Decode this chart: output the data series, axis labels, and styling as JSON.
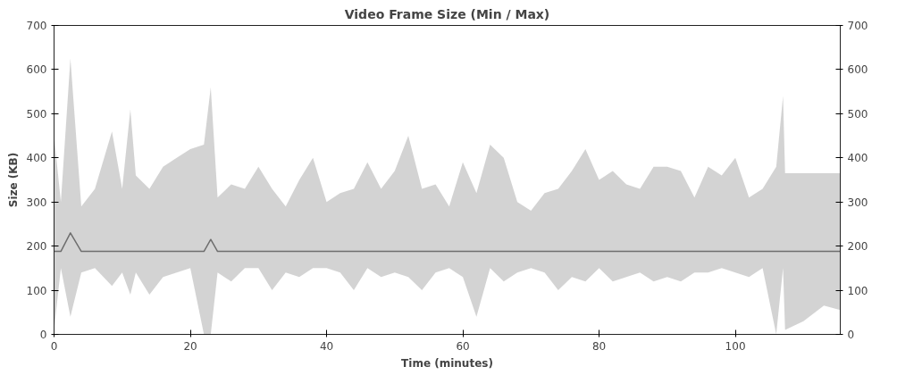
{
  "chart_data": {
    "type": "line",
    "title": "Video Frame Size (Min / Max)",
    "xlabel": "Time (minutes)",
    "ylabel": "Size (KB)",
    "xlim": [
      0,
      115.4
    ],
    "xticks": [
      0,
      20,
      40,
      60,
      80,
      100
    ],
    "ylim": [
      0,
      700
    ],
    "yticks": [
      0,
      100,
      200,
      300,
      400,
      500,
      600,
      700
    ],
    "y2lim": [
      0,
      700
    ],
    "y2ticks": [
      0,
      100,
      200,
      300,
      400,
      500,
      600,
      700
    ],
    "grid": false,
    "marker": "none",
    "line_style": "solid",
    "series": [
      {
        "color": "#6e6e6e",
        "x": [
          0,
          1,
          2.4,
          4,
          6,
          8.5,
          10,
          11.2,
          12,
          14,
          16,
          18,
          20,
          22,
          23,
          24,
          26,
          28,
          30,
          32,
          34,
          36,
          38,
          40,
          42,
          44,
          46,
          48,
          50,
          52,
          54,
          56,
          58,
          60,
          62,
          64,
          66,
          68,
          70,
          72,
          74,
          76,
          78,
          80,
          82,
          84,
          86,
          88,
          90,
          92,
          94,
          96,
          98,
          100,
          102,
          104,
          106,
          107,
          107.3,
          110,
          113,
          115.4
        ],
        "values": [
          188,
          188,
          230,
          188,
          188,
          188,
          188,
          188,
          188,
          188,
          188,
          188,
          188,
          188,
          215,
          188,
          188,
          188,
          188,
          188,
          188,
          188,
          188,
          188,
          188,
          188,
          188,
          188,
          188,
          188,
          188,
          188,
          188,
          188,
          188,
          188,
          188,
          188,
          188,
          188,
          188,
          188,
          188,
          188,
          188,
          188,
          188,
          188,
          188,
          188,
          188,
          188,
          188,
          188,
          188,
          188,
          188,
          188,
          188,
          188,
          188,
          188
        ],
        "upper": [
          450,
          300,
          625,
          290,
          330,
          460,
          330,
          510,
          360,
          330,
          380,
          400,
          420,
          430,
          560,
          310,
          340,
          330,
          380,
          330,
          290,
          350,
          400,
          300,
          320,
          330,
          390,
          330,
          370,
          450,
          330,
          340,
          290,
          390,
          320,
          430,
          400,
          300,
          280,
          320,
          330,
          370,
          420,
          350,
          370,
          340,
          330,
          380,
          380,
          370,
          310,
          380,
          360,
          400,
          310,
          330,
          380,
          540,
          365,
          365,
          365,
          365
        ],
        "lower": [
          10,
          150,
          40,
          140,
          150,
          110,
          140,
          90,
          140,
          90,
          130,
          140,
          150,
          0,
          0,
          140,
          120,
          150,
          150,
          100,
          140,
          130,
          150,
          150,
          140,
          100,
          150,
          130,
          140,
          130,
          100,
          140,
          150,
          130,
          40,
          150,
          120,
          140,
          150,
          140,
          100,
          130,
          120,
          150,
          120,
          130,
          140,
          120,
          130,
          120,
          140,
          140,
          150,
          140,
          130,
          150,
          0,
          150,
          10,
          30,
          65,
          55
        ]
      }
    ]
  }
}
